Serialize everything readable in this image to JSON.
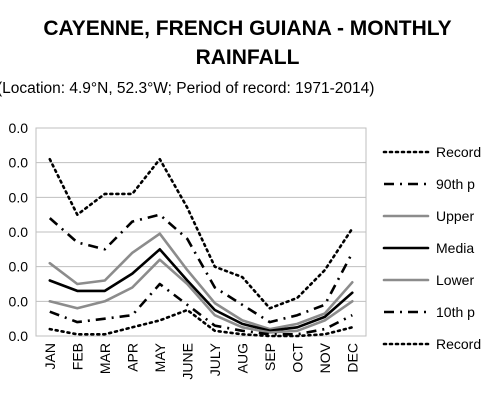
{
  "chart_data": {
    "type": "line",
    "title_line1": "CAYENNE, FRENCH GUIANA - MONTHLY",
    "title_line2": "RAINFALL",
    "subtitle": "(Location: 4.9°N, 52.3°W; Period of record: 1971-2014)",
    "categories": [
      "JAN",
      "FEB",
      "MAR",
      "APR",
      "MAY",
      "JUNE",
      "JULY",
      "AUG",
      "SEP",
      "OCT",
      "NOV",
      "DEC"
    ],
    "y_tick_labels": [
      "0.0",
      "0.0",
      "0.0",
      "0.0",
      "0.0",
      "0.0",
      "0.0"
    ],
    "ylim": [
      0,
      6
    ],
    "grid": true,
    "legend_position": "right",
    "series": [
      {
        "name": "Record",
        "style": "dotted",
        "color": "#000000",
        "values": [
          5.1,
          3.5,
          4.1,
          4.1,
          5.1,
          3.7,
          2.0,
          1.7,
          0.8,
          1.1,
          1.9,
          3.1
        ]
      },
      {
        "name": "90th p",
        "style": "dashdot",
        "color": "#000000",
        "values": [
          3.4,
          2.7,
          2.5,
          3.3,
          3.5,
          2.8,
          1.4,
          0.9,
          0.4,
          0.6,
          0.9,
          2.4
        ]
      },
      {
        "name": "Upper",
        "style": "solid",
        "color": "#8c8c8c",
        "values": [
          2.1,
          1.5,
          1.6,
          2.4,
          2.95,
          1.9,
          0.95,
          0.45,
          0.2,
          0.35,
          0.65,
          1.55
        ]
      },
      {
        "name": "Media",
        "style": "solid",
        "color": "#000000",
        "values": [
          1.6,
          1.3,
          1.3,
          1.8,
          2.5,
          1.6,
          0.75,
          0.35,
          0.15,
          0.25,
          0.55,
          1.25
        ]
      },
      {
        "name": "Lower",
        "style": "solid",
        "color": "#8c8c8c",
        "values": [
          1.0,
          0.8,
          1.0,
          1.4,
          2.2,
          1.5,
          0.6,
          0.25,
          0.1,
          0.15,
          0.45,
          1.0
        ]
      },
      {
        "name": "10th p",
        "style": "dashdot",
        "color": "#000000",
        "values": [
          0.7,
          0.4,
          0.5,
          0.6,
          1.5,
          0.9,
          0.3,
          0.15,
          0.05,
          0.05,
          0.2,
          0.6
        ]
      },
      {
        "name": "Record",
        "style": "dotted",
        "color": "#000000",
        "values": [
          0.2,
          0.05,
          0.05,
          0.25,
          0.45,
          0.75,
          0.15,
          0.05,
          0.0,
          0.0,
          0.05,
          0.25
        ]
      }
    ]
  }
}
